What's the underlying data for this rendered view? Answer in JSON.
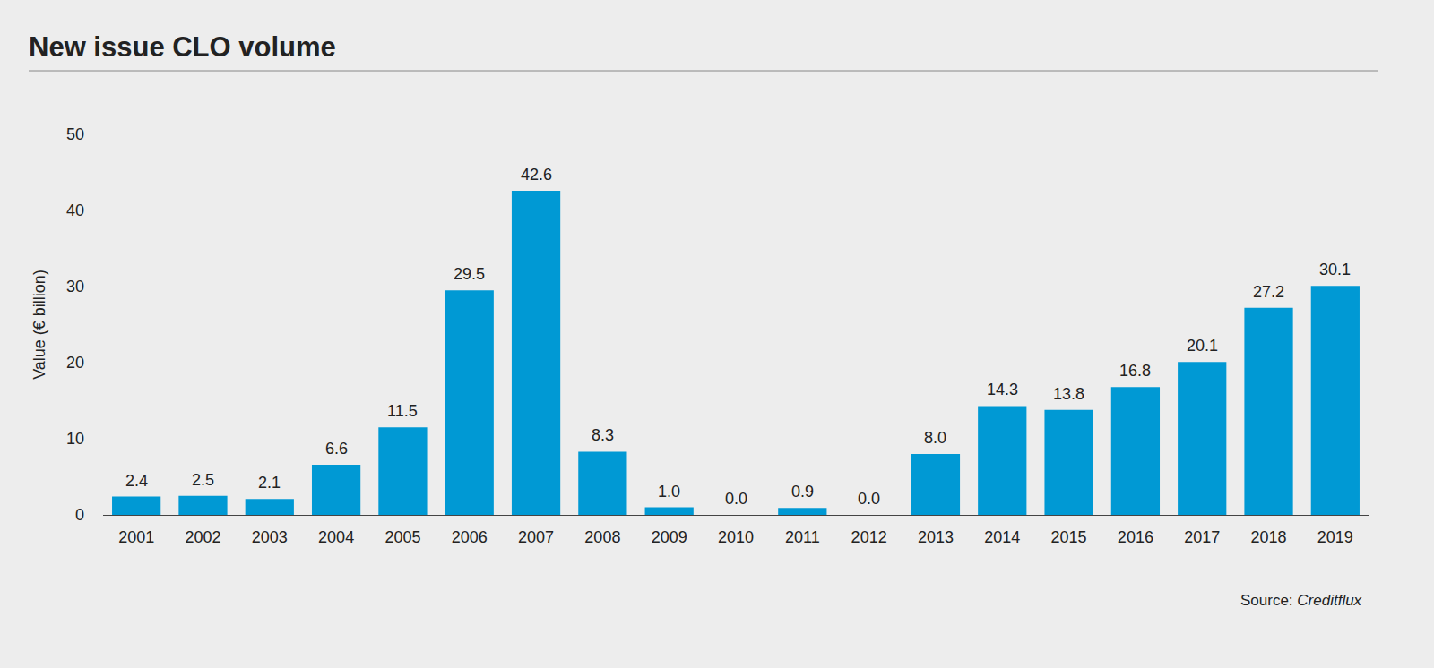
{
  "chart_data": {
    "type": "bar",
    "title": "New issue CLO volume",
    "y_label": "Value (€ billion)",
    "source_prefix": "Source:",
    "source": "Creditflux",
    "categories": [
      "2001",
      "2002",
      "2003",
      "2004",
      "2005",
      "2006",
      "2007",
      "2008",
      "2009",
      "2010",
      "2011",
      "2012",
      "2013",
      "2014",
      "2015",
      "2016",
      "2017",
      "2018",
      "2019"
    ],
    "values": [
      2.4,
      2.5,
      2.1,
      6.6,
      11.5,
      29.5,
      42.6,
      8.3,
      1.0,
      0.0,
      0.9,
      0.0,
      8.0,
      14.3,
      13.8,
      16.8,
      20.1,
      27.2,
      30.1
    ],
    "value_labels": [
      "2.4",
      "2.5",
      "2.1",
      "6.6",
      "11.5",
      "29.5",
      "42.6",
      "8.3",
      "1.0",
      "0.0",
      "0.9",
      "0.0",
      "8.0",
      "14.3",
      "13.8",
      "16.8",
      "20.1",
      "27.2",
      "30.1"
    ],
    "color": "#0099d4",
    "ylim": [
      0,
      50
    ],
    "yticks": [
      0,
      10,
      20,
      30,
      40,
      50
    ],
    "grid": false,
    "data_labels": true
  }
}
